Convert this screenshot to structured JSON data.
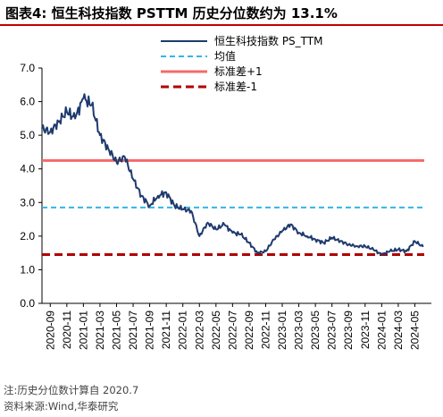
{
  "title": "图表4:  恒生科技指数 PSTTM 历史分位数约为 13.1%",
  "note": "注:历史分位数计算自 2020.7",
  "source": "资料来源:Wind,华泰研究",
  "colors": {
    "series": "#1f3a6e",
    "mean": "#33b5e5",
    "std_plus": "#f4696b",
    "std_minus": "#b00000",
    "title_rule": "#c00000"
  },
  "chart_data": {
    "type": "line",
    "title": "恒生科技指数 PSTTM 历史分位数约为 13.1%",
    "xlabel": "",
    "ylabel": "",
    "ylim": [
      0,
      7
    ],
    "yticks": [
      "0.0",
      "1.0",
      "2.0",
      "3.0",
      "4.0",
      "5.0",
      "6.0",
      "7.0"
    ],
    "xrange": [
      "2020-08",
      "2024-07"
    ],
    "xticks": [
      "2020-09",
      "2020-11",
      "2021-01",
      "2021-03",
      "2021-05",
      "2021-07",
      "2021-09",
      "2021-11",
      "2022-01",
      "2022-03",
      "2022-05",
      "2022-07",
      "2022-09",
      "2022-11",
      "2023-01",
      "2023-03",
      "2023-05",
      "2023-07",
      "2023-09",
      "2023-11",
      "2024-01",
      "2024-03",
      "2024-05"
    ],
    "grid": false,
    "legend_position": "top",
    "series": [
      {
        "name": "恒生科技指数 PS_TTM",
        "style": "solid",
        "x": [
          "2020-08",
          "2020-09",
          "2020-10",
          "2020-11",
          "2020-12",
          "2021-01",
          "2021-02",
          "2021-03",
          "2021-04",
          "2021-05",
          "2021-06",
          "2021-07",
          "2021-08",
          "2021-09",
          "2021-10",
          "2021-11",
          "2021-12",
          "2022-01",
          "2022-02",
          "2022-03",
          "2022-04",
          "2022-05",
          "2022-06",
          "2022-07",
          "2022-08",
          "2022-09",
          "2022-10",
          "2022-11",
          "2022-12",
          "2023-01",
          "2023-02",
          "2023-03",
          "2023-04",
          "2023-05",
          "2023-06",
          "2023-07",
          "2023-08",
          "2023-09",
          "2023-10",
          "2023-11",
          "2023-12",
          "2024-01",
          "2024-02",
          "2024-03",
          "2024-04",
          "2024-05",
          "2024-06"
        ],
        "values": [
          5.2,
          5.1,
          5.4,
          5.7,
          5.5,
          6.1,
          5.9,
          5.0,
          4.6,
          4.2,
          4.35,
          3.7,
          3.2,
          2.9,
          3.2,
          3.3,
          2.9,
          2.8,
          2.75,
          2.0,
          2.4,
          2.2,
          2.35,
          2.1,
          2.05,
          1.8,
          1.5,
          1.55,
          1.9,
          2.15,
          2.35,
          2.1,
          2.0,
          1.9,
          1.8,
          1.95,
          1.85,
          1.75,
          1.7,
          1.7,
          1.6,
          1.45,
          1.55,
          1.6,
          1.55,
          1.85,
          1.68
        ]
      },
      {
        "name": "均值",
        "style": "dashed",
        "value": 2.85
      },
      {
        "name": "标准差+1",
        "style": "solid",
        "value": 4.25
      },
      {
        "name": "标准差-1",
        "style": "dashed",
        "value": 1.45
      }
    ]
  }
}
